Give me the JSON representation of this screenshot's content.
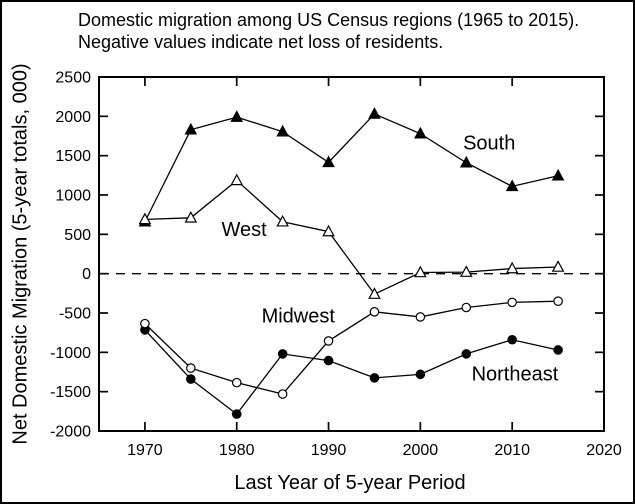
{
  "figure": {
    "title_line1": "Domestic migration among US Census regions (1965 to 2015).",
    "title_line2": "Negative values indicate net loss of residents.",
    "y_axis_label": "Net Domestic Migration (5-year totals, 000)",
    "x_axis_label": "Last Year of 5-year Period"
  },
  "chart_data": {
    "type": "line",
    "title": "Domestic migration among US Census regions (1965 to 2015). Negative values indicate net loss of residents.",
    "xlabel": "Last Year of 5-year Period",
    "ylabel": "Net Domestic Migration (5-year totals, 000)",
    "x": [
      1970,
      1975,
      1980,
      1985,
      1990,
      1995,
      2000,
      2005,
      2010,
      2015
    ],
    "series": [
      {
        "name": "South",
        "marker": "filled-triangle",
        "values": [
          660,
          1830,
          1990,
          1805,
          1415,
          2030,
          1780,
          1410,
          1110,
          1245
        ],
        "label": {
          "text": "South",
          "x": 2007.5,
          "y": 1670
        }
      },
      {
        "name": "Northeast",
        "marker": "filled-circle",
        "values": [
          -715,
          -1340,
          -1785,
          -1020,
          -1105,
          -1325,
          -1280,
          -1020,
          -840,
          -970
        ],
        "label": {
          "text": "Northeast",
          "x": 2010.3,
          "y": -1270
        }
      },
      {
        "name": "Midwest",
        "marker": "open-circle",
        "values": [
          -635,
          -1200,
          -1385,
          -1530,
          -855,
          -485,
          -550,
          -430,
          -365,
          -350
        ],
        "label": {
          "text": "Midwest",
          "x": 1986.7,
          "y": -530
        }
      },
      {
        "name": "West",
        "marker": "open-triangle",
        "values": [
          690,
          710,
          1185,
          660,
          535,
          -260,
          15,
          20,
          65,
          85
        ],
        "label": {
          "text": "West",
          "x": 1980.8,
          "y": 570
        }
      }
    ],
    "xlim": [
      1965,
      2020
    ],
    "ylim": [
      -2000,
      2500
    ],
    "xticks": [
      1970,
      1980,
      1990,
      2000,
      2010,
      2020
    ],
    "yticks": [
      2500,
      2000,
      1500,
      1000,
      500,
      0,
      -500,
      -1000,
      -1500,
      -2000
    ],
    "zero_reference_line": "dashed",
    "grid": false,
    "legend_position": "inline-labels",
    "colors": {
      "foreground": "#000000",
      "background": "#ffffff"
    }
  }
}
